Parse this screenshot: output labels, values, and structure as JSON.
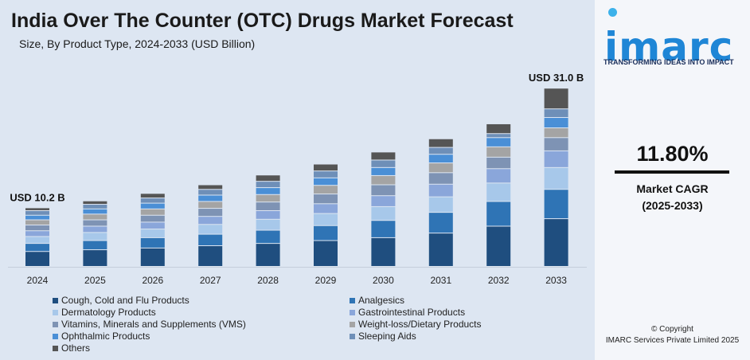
{
  "header": {
    "title": "India Over The Counter (OTC) Drugs Market Forecast",
    "subtitle": "Size, By Product Type, 2024-2033 (USD Billion)"
  },
  "brand": {
    "logo_text": "imarc",
    "tagline": "TRANSFORMING IDEAS INTO IMPACT",
    "cagr_value": "11.80%",
    "cagr_label": "Market CAGR",
    "cagr_period": "(2025-2033)",
    "copyright_line1": "© Copyright",
    "copyright_line2": "IMARC Services Private Limited 2025",
    "logo_color": "#1f86d6"
  },
  "chart_data": {
    "type": "bar",
    "stacked": true,
    "categories": [
      "2024",
      "2025",
      "2026",
      "2027",
      "2028",
      "2029",
      "2030",
      "2031",
      "2032",
      "2033"
    ],
    "totals": [
      10.2,
      11.4,
      12.7,
      14.2,
      15.9,
      17.8,
      19.9,
      22.2,
      24.8,
      31.0
    ],
    "ylim": [
      0,
      32
    ],
    "annotations": [
      {
        "category": "2024",
        "text": "USD 10.2 B"
      },
      {
        "category": "2033",
        "text": "USD 31.0 B"
      }
    ],
    "series": [
      {
        "name": "Cough, Cold and Flu Products",
        "color": "#1f4e7f",
        "values": [
          2.6,
          2.9,
          3.2,
          3.6,
          4.0,
          4.5,
          5.0,
          5.8,
          7.0,
          8.3
        ]
      },
      {
        "name": "Analgesics",
        "color": "#2f74b5",
        "values": [
          1.4,
          1.6,
          1.8,
          2.0,
          2.3,
          2.6,
          3.0,
          3.6,
          4.3,
          5.1
        ]
      },
      {
        "name": "Dermatology Products",
        "color": "#a7c8ea",
        "values": [
          1.2,
          1.4,
          1.5,
          1.7,
          1.9,
          2.1,
          2.4,
          2.7,
          3.2,
          3.8
        ]
      },
      {
        "name": "Gastrointestinal Products",
        "color": "#8aa6da",
        "values": [
          1.0,
          1.1,
          1.2,
          1.4,
          1.5,
          1.7,
          1.9,
          2.2,
          2.5,
          2.9
        ]
      },
      {
        "name": "Vitamins, Minerals and Supplements (VMS)",
        "color": "#7e93b4",
        "values": [
          1.0,
          1.1,
          1.2,
          1.4,
          1.5,
          1.7,
          1.9,
          2.0,
          2.0,
          2.3
        ]
      },
      {
        "name": "Weight-loss/Dietary Products",
        "color": "#a4a4a4",
        "values": [
          0.9,
          1.0,
          1.1,
          1.2,
          1.3,
          1.5,
          1.6,
          1.7,
          1.8,
          1.7
        ]
      },
      {
        "name": "Ophthalmic Products",
        "color": "#4a8fd6",
        "values": [
          0.8,
          0.9,
          1.0,
          1.1,
          1.2,
          1.3,
          1.4,
          1.5,
          1.6,
          1.8
        ]
      },
      {
        "name": "Sleeping Aids",
        "color": "#6e8fb8",
        "values": [
          0.8,
          0.8,
          0.9,
          1.0,
          1.1,
          1.2,
          1.3,
          1.2,
          0.7,
          1.5
        ]
      },
      {
        "name": "Others",
        "color": "#555555",
        "values": [
          0.5,
          0.6,
          0.8,
          0.8,
          1.1,
          1.2,
          1.4,
          1.5,
          1.7,
          3.6
        ]
      }
    ]
  }
}
